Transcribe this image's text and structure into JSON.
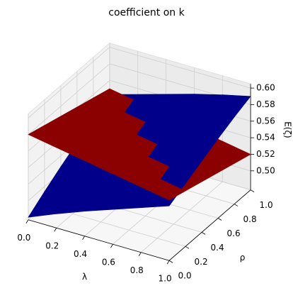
{
  "chart_data": {
    "type": "surface3d",
    "title": "coefficient on k",
    "xlabel": "λ",
    "ylabel": "ρ",
    "zlabel": "E(ζ)",
    "x": [
      0,
      0.2,
      0.4,
      0.6,
      0.8,
      1
    ],
    "y": [
      0,
      0.2,
      0.4,
      0.6,
      0.8,
      1
    ],
    "xlim": [
      0,
      1
    ],
    "ylim": [
      0,
      1
    ],
    "zlim": [
      0.477,
      0.605
    ],
    "xticks": [
      {
        "value": 0,
        "label": "0.0"
      },
      {
        "value": 0.2,
        "label": "0.2"
      },
      {
        "value": 0.4,
        "label": "0.4"
      },
      {
        "value": 0.6,
        "label": "0.6"
      },
      {
        "value": 0.8,
        "label": "0.8"
      },
      {
        "value": 1,
        "label": "1.0"
      }
    ],
    "yticks": [
      {
        "value": 0,
        "label": "0.0"
      },
      {
        "value": 0.2,
        "label": "0.2"
      },
      {
        "value": 0.4,
        "label": "0.4"
      },
      {
        "value": 0.6,
        "label": "0.6"
      },
      {
        "value": 0.8,
        "label": "0.8"
      },
      {
        "value": 1,
        "label": "1.0"
      }
    ],
    "zticks": [
      {
        "value": 0.5,
        "label": "0.50"
      },
      {
        "value": 0.52,
        "label": "0.52"
      },
      {
        "value": 0.54,
        "label": "0.54"
      },
      {
        "value": 0.56,
        "label": "0.56"
      },
      {
        "value": 0.58,
        "label": "0.58"
      },
      {
        "value": 0.6,
        "label": "0.60"
      }
    ],
    "grid": true,
    "series": [
      {
        "color": "#00008b",
        "z": [
          [
            0.48,
            0.494,
            0.507,
            0.519,
            0.531,
            0.543
          ],
          [
            0.494,
            0.507,
            0.519,
            0.531,
            0.543,
            0.553
          ],
          [
            0.507,
            0.519,
            0.531,
            0.543,
            0.553,
            0.563
          ],
          [
            0.519,
            0.531,
            0.543,
            0.553,
            0.563,
            0.573
          ],
          [
            0.531,
            0.543,
            0.553,
            0.563,
            0.573,
            0.582
          ],
          [
            0.543,
            0.553,
            0.563,
            0.573,
            0.582,
            0.59
          ]
        ]
      },
      {
        "color": "#8b0000",
        "z": [
          [
            0.58,
            0.574,
            0.568,
            0.562,
            0.556,
            0.55
          ],
          [
            0.574,
            0.568,
            0.562,
            0.556,
            0.55,
            0.544
          ],
          [
            0.568,
            0.562,
            0.556,
            0.55,
            0.544,
            0.538
          ],
          [
            0.562,
            0.556,
            0.55,
            0.544,
            0.538,
            0.532
          ],
          [
            0.556,
            0.55,
            0.544,
            0.538,
            0.532,
            0.526
          ],
          [
            0.55,
            0.544,
            0.538,
            0.532,
            0.526,
            0.52
          ]
        ]
      }
    ]
  }
}
